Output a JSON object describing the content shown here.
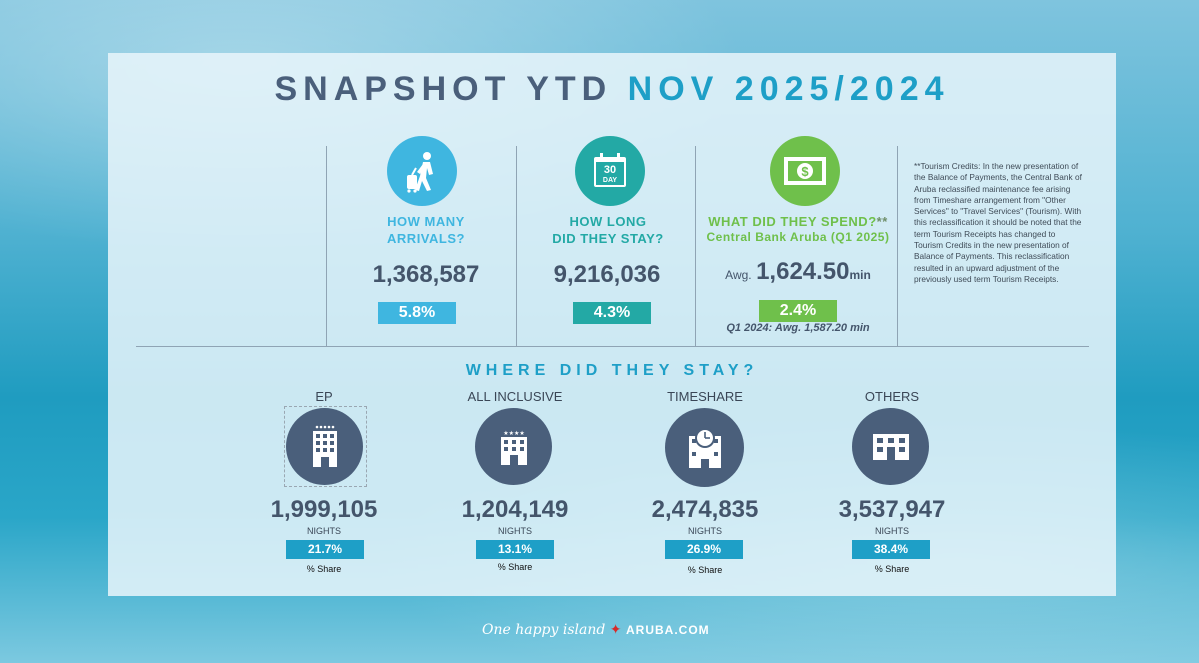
{
  "title": {
    "part1": "SNAPSHOT YTD",
    "part2": "NOV 2025/2024"
  },
  "arrivals": {
    "icon": "traveler-icon",
    "question_line1": "HOW MANY",
    "question_line2": "ARRIVALS?",
    "value": "1,368,587",
    "change": "5.8%"
  },
  "stay": {
    "icon": "calendar-30-day-icon",
    "calendar_number": "30",
    "calendar_label": "DAY",
    "question_line1": "HOW LONG",
    "question_line2": "DID THEY STAY?",
    "value": "9,216,036",
    "change": "4.3%"
  },
  "spend": {
    "icon": "dollar-bill-icon",
    "question": "WHAT DID THEY SPEND?",
    "question_suffix": "**",
    "source": "Central Bank Aruba (Q1 2025)",
    "prefix": "Awg.",
    "value": "1,624.50",
    "unit": "min",
    "change": "2.4%",
    "comparison": "Q1 2024: Awg. 1,587.20 min"
  },
  "note": "**Tourism Credits: In the new presentation of the Balance of Payments, the Central Bank of Aruba reclassified maintenance fee arising from Timeshare arrangement from \"Other Services\" to \"Travel Services\" (Tourism). With this reclassification it should be noted that the term Tourism Receipts has changed to Tourism Credits in the new presentation of Balance of Payments. This reclassification resulted in an upward adjustment of the previously used term Tourism Receipts.",
  "section_title": "WHERE DID THEY STAY?",
  "accommodations": [
    {
      "name": "EP",
      "value": "1,999,105",
      "unit": "NIGHTS",
      "share": "21.7%",
      "share_label": "% Share",
      "icon": "hotel-building-icon"
    },
    {
      "name": "ALL INCLUSIVE",
      "value": "1,204,149",
      "unit": "NIGHTS",
      "share": "13.1%",
      "share_label": "% Share",
      "icon": "hotel-four-star-icon"
    },
    {
      "name": "TIMESHARE",
      "value": "2,474,835",
      "unit": "NIGHTS",
      "share": "26.9%",
      "share_label": "% Share",
      "icon": "clock-building-icon"
    },
    {
      "name": "OTHERS",
      "value": "3,537,947",
      "unit": "NIGHTS",
      "share": "38.4%",
      "share_label": "% Share",
      "icon": "low-building-icon"
    }
  ],
  "colors": {
    "navy": "#4a5f7b",
    "accent": "#1e9fc7",
    "teal": "#23a9a5",
    "green": "#6fc04b",
    "sky": "#3fb6e0"
  },
  "footer": {
    "slogan": "One happy island",
    "brand": "ARUBA.COM"
  }
}
